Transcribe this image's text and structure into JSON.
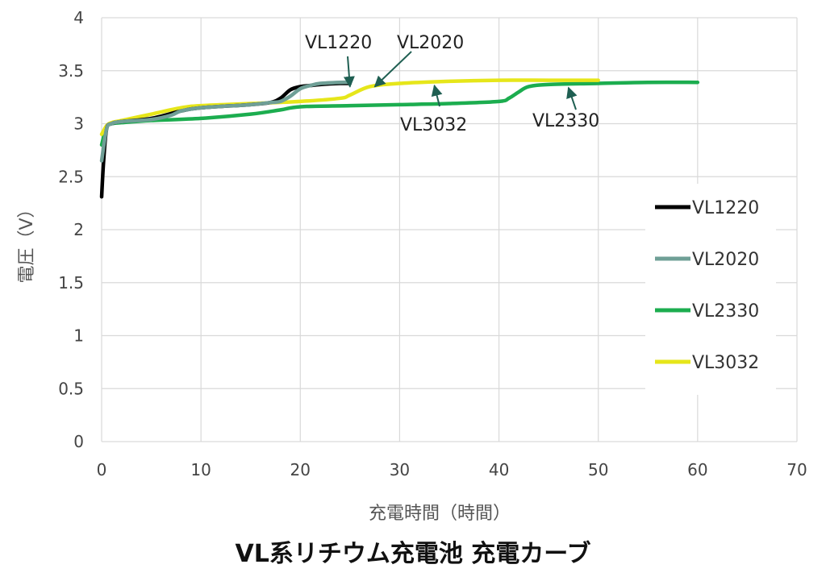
{
  "chart_data": {
    "type": "line",
    "title": "VL系リチウム充電池 充電カーブ",
    "xlabel": "充電時間（時間）",
    "ylabel": "電圧（V）",
    "xlim": [
      0,
      70
    ],
    "ylim": [
      0,
      4
    ],
    "xticks": [
      0,
      10,
      20,
      30,
      40,
      50,
      60,
      70
    ],
    "xtick_labels": [
      "0",
      "10",
      "20",
      "30",
      "40",
      "50",
      "60",
      "70"
    ],
    "yticks": [
      0,
      0.5,
      1,
      1.5,
      2,
      2.5,
      3,
      3.5,
      4
    ],
    "ytick_labels": [
      "0",
      "0.5",
      "1",
      "1.5",
      "2",
      "2.5",
      "3",
      "3.5",
      "4"
    ],
    "grid": true,
    "legend_position": "right",
    "series": [
      {
        "name": "VL1220",
        "color": "#000000",
        "x": [
          0,
          0.2,
          0.5,
          1,
          2,
          5,
          8,
          10,
          15,
          17,
          18,
          19,
          20,
          21,
          22,
          24,
          25
        ],
        "y": [
          2.31,
          2.65,
          2.95,
          3.0,
          3.02,
          3.05,
          3.12,
          3.15,
          3.18,
          3.2,
          3.24,
          3.32,
          3.35,
          3.36,
          3.37,
          3.38,
          3.38
        ]
      },
      {
        "name": "VL2020",
        "color": "#6f9f96",
        "x": [
          0,
          0.5,
          1,
          2,
          5,
          7,
          8,
          10,
          15,
          17,
          18,
          19,
          20,
          21,
          22,
          24,
          25
        ],
        "y": [
          2.65,
          2.95,
          3.0,
          3.02,
          3.04,
          3.08,
          3.12,
          3.15,
          3.18,
          3.2,
          3.21,
          3.26,
          3.33,
          3.36,
          3.38,
          3.39,
          3.39
        ]
      },
      {
        "name": "VL2330",
        "color": "#1cad4f",
        "x": [
          0,
          0.5,
          1,
          2,
          5,
          10,
          15,
          18,
          20,
          25,
          30,
          35,
          40,
          41,
          42,
          43,
          45,
          50,
          55,
          60
        ],
        "y": [
          2.8,
          2.97,
          3.0,
          3.01,
          3.03,
          3.05,
          3.09,
          3.13,
          3.16,
          3.17,
          3.18,
          3.19,
          3.21,
          3.24,
          3.3,
          3.35,
          3.37,
          3.38,
          3.39,
          3.39
        ]
      },
      {
        "name": "VL3032",
        "color": "#e6e61a",
        "x": [
          0,
          0.5,
          1,
          2,
          5,
          8,
          10,
          15,
          20,
          24,
          25,
          27,
          30,
          35,
          40,
          45,
          50
        ],
        "y": [
          2.9,
          2.98,
          3.01,
          3.03,
          3.09,
          3.15,
          3.17,
          3.19,
          3.21,
          3.24,
          3.27,
          3.35,
          3.38,
          3.4,
          3.41,
          3.41,
          3.41
        ]
      }
    ],
    "annotations": [
      {
        "text": "VL1220",
        "target": [
          25,
          3.38
        ]
      },
      {
        "text": "VL2020",
        "target": [
          27.5,
          3.38
        ]
      },
      {
        "text": "VL3032",
        "target": [
          33.5,
          3.39
        ]
      },
      {
        "text": "VL2330",
        "target": [
          47,
          3.37
        ]
      }
    ]
  }
}
